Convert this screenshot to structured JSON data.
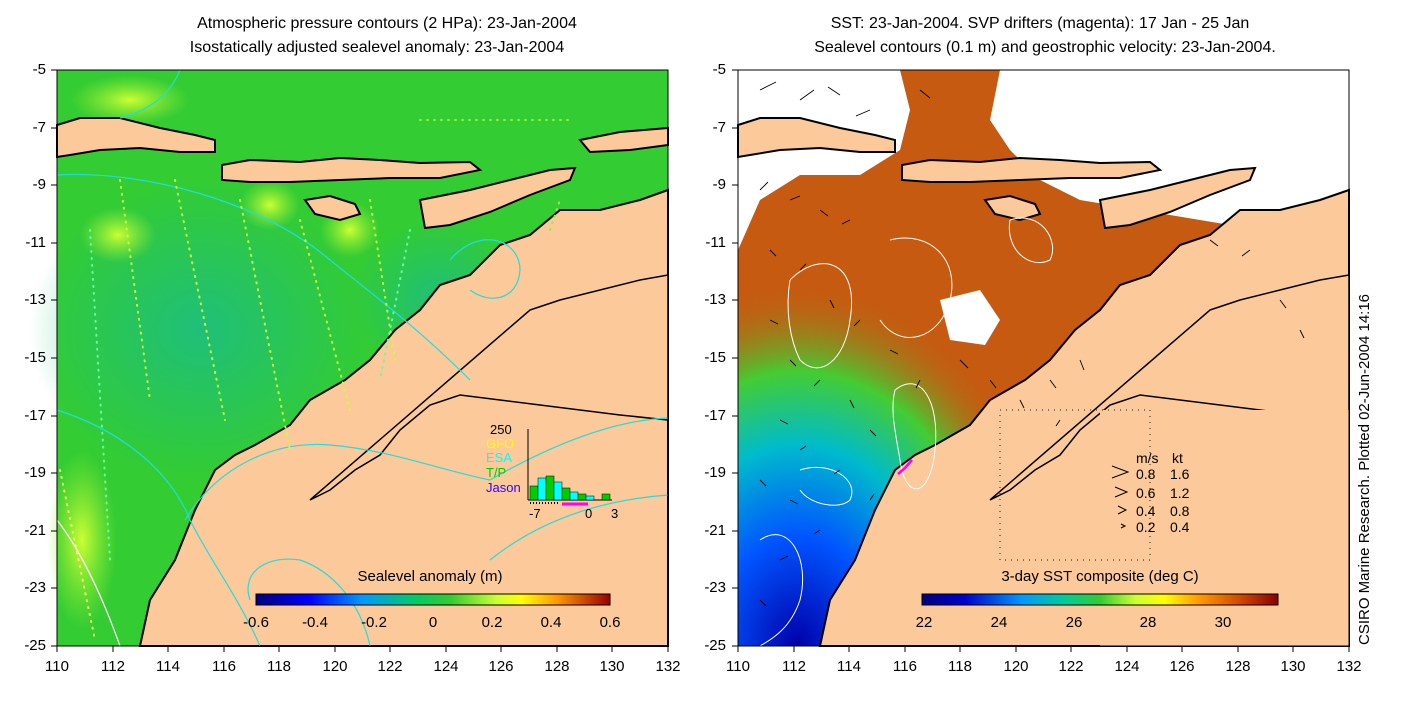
{
  "left_panel": {
    "title_line1": "Atmospheric pressure contours (2 HPa): 23-Jan-2004",
    "title_line2": "Isostatically adjusted sealevel anomaly: 23-Jan-2004",
    "colorbar_label": "Sealevel anomaly (m)",
    "colorbar_ticks": [
      "-0.6",
      "-0.4",
      "-0.2",
      "0",
      "0.2",
      "0.4",
      "0.6"
    ],
    "inset": {
      "y_max_label": "250",
      "legend": [
        {
          "label": "GFO",
          "color": "#ffff00"
        },
        {
          "label": "ESA",
          "color": "#00ffff"
        },
        {
          "label": "T/P",
          "color": "#00cc00"
        },
        {
          "label": "Jason",
          "color": "#3300ff"
        }
      ],
      "x_ticks": [
        "-7",
        "0",
        "3"
      ]
    }
  },
  "right_panel": {
    "title_line1": "SST: 23-Jan-2004. SVP drifters (magenta): 17 Jan - 25 Jan",
    "title_line2": "Sealevel contours (0.1 m) and geostrophic velocity: 23-Jan-2004.",
    "colorbar_label": "3-day SST composite (deg C)",
    "colorbar_ticks": [
      "22",
      "24",
      "26",
      "28",
      "30"
    ],
    "velocity_legend": {
      "header_ms": "m/s",
      "header_kt": "kt",
      "rows": [
        {
          "ms": "0.8",
          "kt": "1.6"
        },
        {
          "ms": "0.6",
          "kt": "1.2"
        },
        {
          "ms": "0.4",
          "kt": "0.8"
        },
        {
          "ms": "0.2",
          "kt": "0.4"
        }
      ]
    }
  },
  "axes": {
    "y_ticks": [
      "-5",
      "-7",
      "-9",
      "-11",
      "-13",
      "-15",
      "-17",
      "-19",
      "-21",
      "-23",
      "-25"
    ],
    "x_ticks": [
      "110",
      "112",
      "114",
      "116",
      "118",
      "120",
      "122",
      "124",
      "126",
      "128",
      "130",
      "132"
    ]
  },
  "side_note": "CSIRO Marine Research. Plotted 02-Jun-2004 14:16",
  "colors": {
    "land": "#fbc99a",
    "ocean_green": "#33cc33",
    "contour_cyan": "#22dddd",
    "sst_warm": "#c65a10"
  }
}
